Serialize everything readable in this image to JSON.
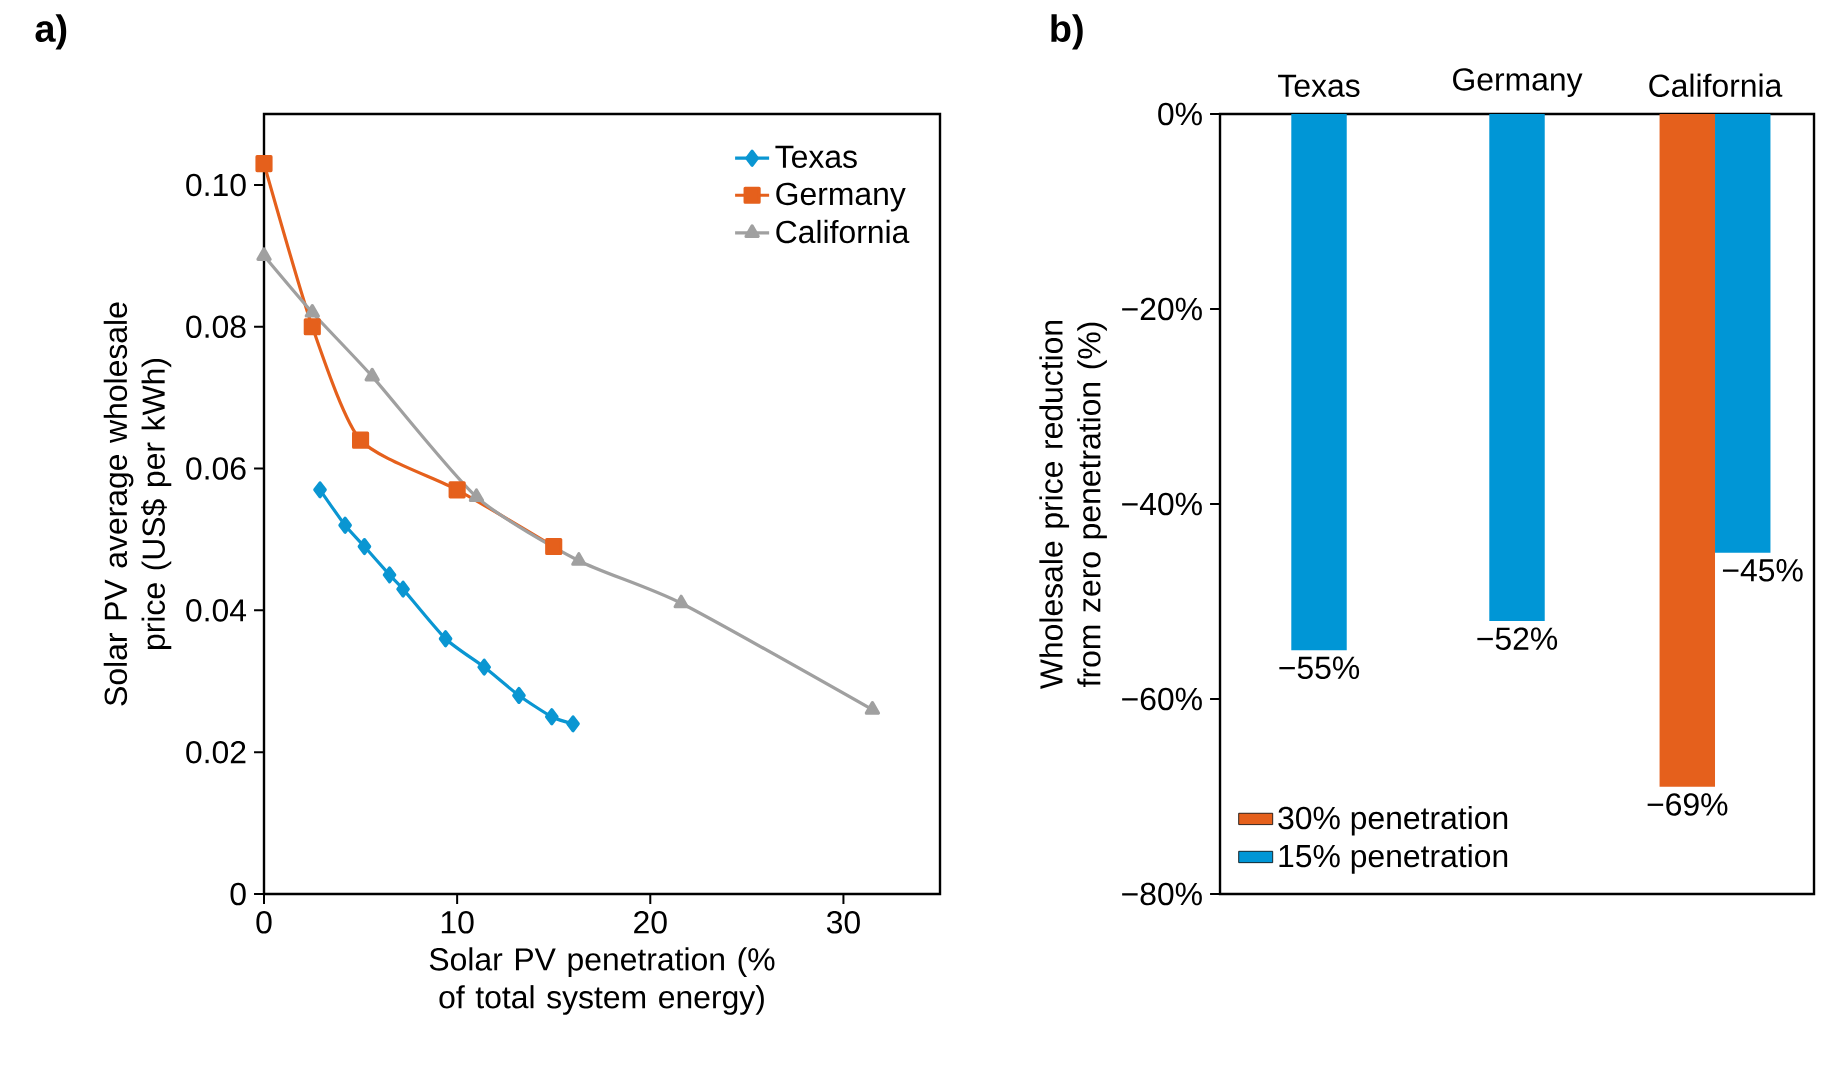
{
  "chart_data": [
    {
      "type": "line",
      "title": "a)",
      "xlabel": "Solar PV penetration (% of total system energy)",
      "ylabel": "Solar PV average wholesale price (US$ per kWh)",
      "xlim": [
        0,
        35
      ],
      "xticks": [
        0,
        10,
        20,
        30
      ],
      "ylim": [
        0,
        0.11
      ],
      "yticks": [
        {
          "value": 0,
          "label": "0"
        },
        {
          "value": 0.02,
          "label": "0.02"
        },
        {
          "value": 0.04,
          "label": "0.04"
        },
        {
          "value": 0.06,
          "label": "0.06"
        },
        {
          "value": 0.08,
          "label": "0.08"
        },
        {
          "value": 0.1,
          "label": "0.10"
        }
      ],
      "legend": "top right",
      "series": [
        {
          "name": "Texas",
          "color": "#0a96d2",
          "marker": "diamond",
          "x": [
            2.9,
            4.2,
            5.2,
            6.5,
            7.2,
            9.4,
            11.4,
            13.2,
            14.9,
            16.0
          ],
          "values": [
            0.057,
            0.052,
            0.049,
            0.045,
            0.043,
            0.036,
            0.032,
            0.028,
            0.025,
            0.024
          ]
        },
        {
          "name": "Germany",
          "color": "#e5601c",
          "marker": "square",
          "x": [
            0,
            2.5,
            5,
            10,
            15
          ],
          "values": [
            0.103,
            0.08,
            0.064,
            0.057,
            0.049
          ]
        },
        {
          "name": "California",
          "color": "#a0a0a0",
          "marker": "triangle",
          "x": [
            0,
            2.5,
            5.6,
            11,
            16.3,
            21.6,
            31.5
          ],
          "values": [
            0.09,
            0.082,
            0.073,
            0.056,
            0.047,
            0.041,
            0.026
          ]
        }
      ]
    },
    {
      "type": "bar",
      "title": "b)",
      "ylabel": "Wholesale price reduction from zero penetration (%)",
      "categories": [
        "Texas",
        "Germany",
        "California"
      ],
      "ylim": [
        -80,
        0
      ],
      "yticks": [
        {
          "value": -80,
          "label": "−80%"
        },
        {
          "value": -60,
          "label": "−60%"
        },
        {
          "value": -40,
          "label": "−40%"
        },
        {
          "value": -20,
          "label": "−20%"
        },
        {
          "value": 0,
          "label": "0%"
        }
      ],
      "legend": "bottom left",
      "series": [
        {
          "name": "30% penetration",
          "color": "#e5601c",
          "values": [
            null,
            null,
            -69
          ],
          "value_labels": [
            null,
            null,
            "−69%"
          ]
        },
        {
          "name": "15% penetration",
          "color": "#0096d6",
          "values": [
            -55,
            -52,
            -45
          ],
          "value_labels": [
            "−55%",
            "−52%",
            "−45%"
          ]
        }
      ]
    }
  ]
}
